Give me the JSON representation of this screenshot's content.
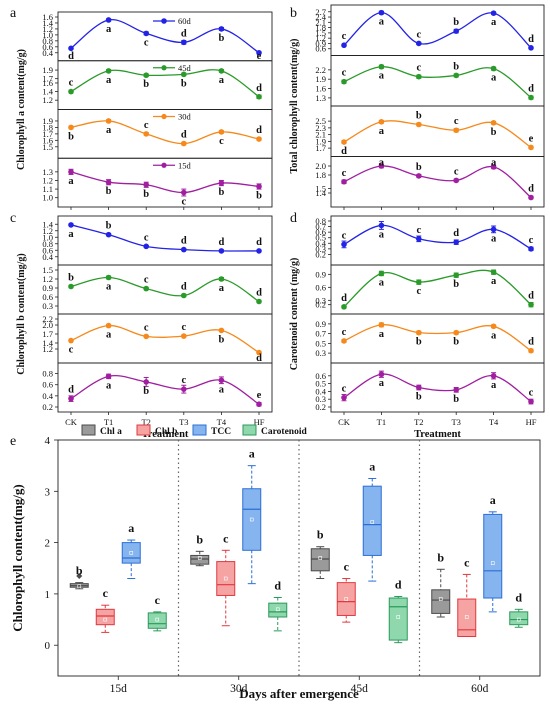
{
  "chart_data": [
    {
      "id": "a",
      "panel_label": "a",
      "type": "line",
      "ylabel": "Chlorophyll a content(mg/g)",
      "x": [
        "CK",
        "T1",
        "T2",
        "T3",
        "T4",
        "HF"
      ],
      "xlabel": "",
      "legend_name": "60d",
      "legend_index": 0,
      "series": [
        {
          "name": "60d",
          "color": "#2323e6",
          "ylim": [
            0.3,
            1.6
          ],
          "ticks": [
            0.4,
            0.6,
            0.8,
            1.0,
            1.2,
            1.4,
            1.6
          ],
          "values": [
            0.55,
            1.5,
            1.05,
            0.75,
            1.2,
            0.4
          ],
          "err": [
            0.03,
            0.04,
            0.05,
            0.06,
            0.05,
            0.03
          ],
          "letters": [
            "d",
            "a",
            "c",
            "d",
            "b",
            "e"
          ],
          "letter_pos": [
            "below",
            "below",
            "below",
            "above",
            "below",
            "below"
          ]
        },
        {
          "name": "45d",
          "color": "#2a9a2a",
          "ylim": [
            1.1,
            2.0
          ],
          "ticks": [
            1.2,
            1.4,
            1.6,
            1.7,
            1.9
          ],
          "values": [
            1.4,
            1.88,
            1.78,
            1.8,
            1.88,
            1.28
          ],
          "err": [
            0.03,
            0.03,
            0.03,
            0.03,
            0.03,
            0.04
          ],
          "letters": [
            "c",
            "a",
            "b",
            "b",
            "a",
            "d"
          ],
          "letter_pos": [
            "above",
            "below",
            "below",
            "below",
            "below",
            "above"
          ]
        },
        {
          "name": "30d",
          "color": "#f5891b",
          "ylim": [
            1.4,
            2.0
          ],
          "ticks": [
            1.5,
            1.6,
            1.7,
            1.8,
            1.9
          ],
          "values": [
            1.8,
            1.9,
            1.7,
            1.55,
            1.73,
            1.62
          ],
          "err": [
            0.02,
            0.02,
            0.02,
            0.02,
            0.02,
            0.02
          ],
          "letters": [
            "b",
            "a",
            "c",
            "d",
            "c",
            "d"
          ],
          "letter_pos": [
            "below",
            "below",
            "above",
            "above",
            "below",
            "above"
          ]
        },
        {
          "name": "15d",
          "color": "#a01fa0",
          "ylim": [
            0.95,
            1.4
          ],
          "ticks": [
            1.0,
            1.1,
            1.2,
            1.3
          ],
          "values": [
            1.3,
            1.18,
            1.15,
            1.06,
            1.17,
            1.13
          ],
          "err": [
            0.03,
            0.03,
            0.03,
            0.04,
            0.03,
            0.03
          ],
          "letters": [
            "a",
            "b",
            "b",
            "c",
            "b",
            "b"
          ],
          "letter_pos": [
            "below",
            "below",
            "below",
            "below",
            "below",
            "below"
          ]
        }
      ]
    },
    {
      "id": "b",
      "panel_label": "b",
      "type": "line",
      "ylabel": "Total chlorophyll content(mg/g)",
      "x": [
        "CK",
        "T1",
        "T2",
        "T3",
        "T4",
        "HF"
      ],
      "xlabel": "",
      "series": [
        {
          "name": "60d",
          "color": "#2323e6",
          "ylim": [
            0.5,
            2.8
          ],
          "ticks": [
            0.6,
            0.9,
            1.2,
            1.5,
            1.8,
            2.1,
            2.4,
            2.7
          ],
          "values": [
            0.8,
            2.65,
            0.9,
            1.6,
            2.62,
            0.65
          ],
          "err": [
            0.05,
            0.08,
            0.06,
            0.1,
            0.07,
            0.05
          ],
          "letters": [
            "c",
            "a",
            "c",
            "b",
            "a",
            "d"
          ],
          "letter_pos": [
            "above",
            "below",
            "above",
            "above",
            "below",
            "above"
          ]
        },
        {
          "name": "45d",
          "color": "#2a9a2a",
          "ylim": [
            1.2,
            2.5
          ],
          "ticks": [
            1.3,
            1.6,
            1.9,
            2.2
          ],
          "values": [
            1.82,
            2.3,
            1.98,
            2.02,
            2.24,
            1.31
          ],
          "err": [
            0.05,
            0.05,
            0.05,
            0.05,
            0.05,
            0.05
          ],
          "letters": [
            "c",
            "a",
            "c",
            "b",
            "a",
            "d"
          ],
          "letter_pos": [
            "above",
            "below",
            "above",
            "above",
            "below",
            "above"
          ]
        },
        {
          "name": "30d",
          "color": "#f5891b",
          "ylim": [
            1.6,
            2.8
          ],
          "ticks": [
            1.7,
            1.9,
            2.1,
            2.3,
            2.5
          ],
          "values": [
            1.88,
            2.48,
            2.4,
            2.23,
            2.45,
            1.72
          ],
          "err": [
            0.04,
            0.04,
            0.04,
            0.05,
            0.04,
            0.04
          ],
          "letters": [
            "d",
            "a",
            "b",
            "c",
            "b",
            "e"
          ],
          "letter_pos": [
            "below",
            "below",
            "above",
            "above",
            "below",
            "above"
          ]
        },
        {
          "name": "15d",
          "color": "#a01fa0",
          "ylim": [
            1.2,
            2.1
          ],
          "ticks": [
            1.4,
            1.5,
            1.8,
            2.0
          ],
          "values": [
            1.65,
            2.0,
            1.78,
            1.68,
            1.98,
            1.3
          ],
          "err": [
            0.04,
            0.04,
            0.03,
            0.03,
            0.04,
            0.03
          ],
          "letters": [
            "c",
            "a",
            "b",
            "c",
            "a",
            "d"
          ],
          "letter_pos": [
            "above",
            "above",
            "above",
            "above",
            "above",
            "above"
          ]
        }
      ]
    },
    {
      "id": "c",
      "panel_label": "c",
      "type": "line",
      "ylabel": "Chlorophyll b content(mg/g)",
      "x": [
        "CK",
        "T1",
        "T2",
        "T3",
        "T4",
        "HF"
      ],
      "xlabel": "Treatment",
      "series": [
        {
          "name": "60d",
          "color": "#2323e6",
          "ylim": [
            0.3,
            1.5
          ],
          "ticks": [
            0.4,
            0.6,
            0.8,
            1.0,
            1.2,
            1.4
          ],
          "values": [
            1.38,
            1.08,
            0.72,
            0.62,
            0.58,
            0.58
          ],
          "err": [
            0.03,
            0.03,
            0.03,
            0.03,
            0.03,
            0.02
          ],
          "letters": [
            "a",
            "b",
            "c",
            "d",
            "d",
            "d"
          ],
          "letter_pos": [
            "below",
            "above",
            "above",
            "above",
            "above",
            "above"
          ]
        },
        {
          "name": "45d",
          "color": "#2a9a2a",
          "ylim": [
            0.2,
            1.5
          ],
          "ticks": [
            0.3,
            0.6,
            0.9,
            1.2,
            1.5
          ],
          "values": [
            0.95,
            1.25,
            0.88,
            0.65,
            1.2,
            0.45
          ],
          "err": [
            0.04,
            0.05,
            0.04,
            0.04,
            0.05,
            0.04
          ],
          "letters": [
            "b",
            "a",
            "c",
            "d",
            "a",
            "d"
          ],
          "letter_pos": [
            "above",
            "below",
            "above",
            "above",
            "below",
            "above"
          ]
        },
        {
          "name": "30d",
          "color": "#f5891b",
          "ylim": [
            0.9,
            2.2
          ],
          "ticks": [
            1.2,
            1.4,
            1.7,
            2.0,
            2.2
          ],
          "values": [
            1.48,
            1.98,
            1.62,
            1.63,
            1.82,
            1.08
          ],
          "err": [
            0.03,
            0.04,
            0.03,
            0.03,
            0.03,
            0.03
          ],
          "letters": [
            "c",
            "a",
            "c",
            "c",
            "b",
            "d"
          ],
          "letter_pos": [
            "below",
            "below",
            "above",
            "above",
            "below",
            "below"
          ]
        },
        {
          "name": "15d",
          "color": "#a01fa0",
          "ylim": [
            0.2,
            0.9
          ],
          "ticks": [
            0.2,
            0.4,
            0.6,
            0.8
          ],
          "values": [
            0.35,
            0.75,
            0.65,
            0.52,
            0.68,
            0.25
          ],
          "err": [
            0.05,
            0.04,
            0.08,
            0.07,
            0.06,
            0.03
          ],
          "letters": [
            "d",
            "a",
            "b",
            "c",
            "a",
            "e"
          ],
          "letter_pos": [
            "above",
            "below",
            "below",
            "above",
            "below",
            "above"
          ]
        }
      ]
    },
    {
      "id": "d",
      "panel_label": "d",
      "type": "line",
      "ylabel": "Carotenoid content (mg/g)",
      "x": [
        "CK",
        "T1",
        "T2",
        "T3",
        "T4",
        "HF"
      ],
      "xlabel": "Treatment",
      "series": [
        {
          "name": "60d",
          "color": "#2323e6",
          "ylim": [
            0.1,
            0.8
          ],
          "ticks": [
            0.2,
            0.3,
            0.4,
            0.5,
            0.6,
            0.7,
            0.8
          ],
          "values": [
            0.38,
            0.72,
            0.48,
            0.42,
            0.65,
            0.3
          ],
          "err": [
            0.06,
            0.07,
            0.05,
            0.04,
            0.06,
            0.03
          ],
          "letters": [
            "c",
            "a",
            "c",
            "d",
            "a",
            "c"
          ],
          "letter_pos": [
            "above",
            "below",
            "above",
            "above",
            "below",
            "above"
          ]
        },
        {
          "name": "45d",
          "color": "#2a9a2a",
          "ylim": [
            0.1,
            1.0
          ],
          "ticks": [
            0.2,
            0.3,
            0.6,
            0.9
          ],
          "values": [
            0.15,
            0.92,
            0.72,
            0.88,
            0.95,
            0.2
          ],
          "err": [
            0.03,
            0.05,
            0.05,
            0.05,
            0.05,
            0.05
          ],
          "letters": [
            "d",
            "a",
            "c",
            "b",
            "a",
            "d"
          ],
          "letter_pos": [
            "above",
            "below",
            "below",
            "below",
            "below",
            "above"
          ]
        },
        {
          "name": "30d",
          "color": "#f5891b",
          "ylim": [
            0.2,
            1.0
          ],
          "ticks": [
            0.3,
            0.5,
            0.7,
            0.9
          ],
          "values": [
            0.55,
            0.88,
            0.72,
            0.72,
            0.85,
            0.35
          ],
          "err": [
            0.03,
            0.04,
            0.03,
            0.03,
            0.03,
            0.03
          ],
          "letters": [
            "c",
            "a",
            "b",
            "b",
            "a",
            "d"
          ],
          "letter_pos": [
            "above",
            "below",
            "below",
            "below",
            "below",
            "above"
          ]
        },
        {
          "name": "15d",
          "color": "#a01fa0",
          "ylim": [
            0.2,
            0.7
          ],
          "ticks": [
            0.2,
            0.3,
            0.4,
            0.5,
            0.6
          ],
          "values": [
            0.32,
            0.62,
            0.45,
            0.42,
            0.6,
            0.27
          ],
          "err": [
            0.04,
            0.04,
            0.03,
            0.03,
            0.04,
            0.03
          ],
          "letters": [
            "c",
            "a",
            "b",
            "b",
            "a",
            "c"
          ],
          "letter_pos": [
            "above",
            "below",
            "below",
            "below",
            "below",
            "above"
          ]
        }
      ]
    },
    {
      "id": "e",
      "panel_label": "e",
      "type": "box",
      "ylabel": "Chlorophyll content(mg/g)",
      "xlabel": "Days after emergence",
      "categories": [
        "15d",
        "30d",
        "45d",
        "60d"
      ],
      "ylim": [
        -0.6,
        4.0
      ],
      "yticks": [
        0,
        1,
        2,
        3,
        4
      ],
      "series": [
        {
          "name": "Chl a",
          "fill": "#9a9a9a",
          "stroke": "#4a4a4a"
        },
        {
          "name": "Chl b",
          "fill": "#f6a3a3",
          "stroke": "#e0393e"
        },
        {
          "name": "TCC",
          "fill": "#86b4ee",
          "stroke": "#2b6fd6"
        },
        {
          "name": "Carotenoid",
          "fill": "#8fd8ad",
          "stroke": "#2a9a5a"
        }
      ],
      "boxes": [
        [
          {
            "min": 1.1,
            "q1": 1.13,
            "median": 1.16,
            "q3": 1.2,
            "max": 1.22,
            "mean": 1.15,
            "outlier": 1.35,
            "letter": "b"
          },
          {
            "min": 0.25,
            "q1": 0.4,
            "median": 0.57,
            "q3": 0.7,
            "max": 0.78,
            "mean": 0.5,
            "letter": "c"
          },
          {
            "min": 1.3,
            "q1": 1.6,
            "median": 1.7,
            "q3": 2.0,
            "max": 2.05,
            "mean": 1.8,
            "letter": "a"
          },
          {
            "min": 0.28,
            "q1": 0.33,
            "median": 0.42,
            "q3": 0.63,
            "max": 0.65,
            "mean": 0.5,
            "letter": "c"
          }
        ],
        [
          {
            "min": 1.55,
            "q1": 1.58,
            "median": 1.68,
            "q3": 1.75,
            "max": 1.83,
            "mean": 1.7,
            "letter": "b"
          },
          {
            "min": 0.38,
            "q1": 0.97,
            "median": 1.18,
            "q3": 1.63,
            "max": 1.85,
            "mean": 1.3,
            "letter": "c"
          },
          {
            "min": 1.2,
            "q1": 1.85,
            "median": 2.65,
            "q3": 3.05,
            "max": 3.5,
            "mean": 2.45,
            "letter": "a"
          },
          {
            "min": 0.28,
            "q1": 0.55,
            "median": 0.65,
            "q3": 0.82,
            "max": 0.93,
            "mean": 0.7,
            "letter": "d"
          }
        ],
        [
          {
            "min": 1.3,
            "q1": 1.45,
            "median": 1.68,
            "q3": 1.88,
            "max": 1.92,
            "mean": 1.7,
            "letter": "b"
          },
          {
            "min": 0.45,
            "q1": 0.58,
            "median": 0.85,
            "q3": 1.22,
            "max": 1.3,
            "mean": 0.9,
            "letter": "c"
          },
          {
            "min": 1.25,
            "q1": 1.75,
            "median": 2.35,
            "q3": 3.1,
            "max": 3.25,
            "mean": 2.4,
            "letter": "a"
          },
          {
            "min": 0.05,
            "q1": 0.1,
            "median": 0.75,
            "q3": 0.92,
            "max": 0.95,
            "mean": 0.55,
            "letter": "d"
          }
        ],
        [
          {
            "min": 0.55,
            "q1": 0.62,
            "median": 0.88,
            "q3": 1.08,
            "max": 1.48,
            "mean": 0.9,
            "letter": "b"
          },
          {
            "min": 0.17,
            "q1": 0.17,
            "median": 0.3,
            "q3": 0.9,
            "max": 1.38,
            "mean": 0.55,
            "letter": "c"
          },
          {
            "min": 0.65,
            "q1": 0.92,
            "median": 1.45,
            "q3": 2.55,
            "max": 2.6,
            "mean": 1.6,
            "letter": "a"
          },
          {
            "min": 0.35,
            "q1": 0.4,
            "median": 0.5,
            "q3": 0.65,
            "max": 0.7,
            "mean": 0.5,
            "letter": "d"
          }
        ]
      ]
    }
  ]
}
